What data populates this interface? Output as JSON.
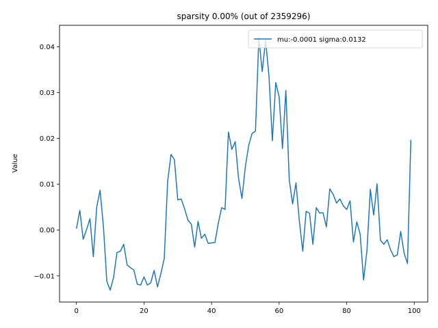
{
  "chart_data": {
    "type": "line",
    "title": "sparsity 0.00% (out of 2359296)",
    "xlabel": "",
    "ylabel": "Value",
    "xlim": [
      -5,
      104
    ],
    "ylim": [
      -0.0157,
      0.0447
    ],
    "xticks": [
      0,
      20,
      40,
      60,
      80,
      100
    ],
    "xtick_labels": [
      "0",
      "20",
      "40",
      "60",
      "80",
      "100"
    ],
    "yticks": [
      -0.01,
      0.0,
      0.01,
      0.02,
      0.03,
      0.04
    ],
    "ytick_labels": [
      "−0.01",
      "0.00",
      "0.01",
      "0.02",
      "0.03",
      "0.04"
    ],
    "grid": false,
    "legend_position": "top-right",
    "series": [
      {
        "name": "mu:-0.0001 sigma:0.0132",
        "color": "#1f77b4",
        "x": [
          0,
          1,
          2,
          3,
          4,
          5,
          6,
          7,
          8,
          9,
          10,
          11,
          12,
          13,
          14,
          15,
          16,
          17,
          18,
          19,
          20,
          21,
          22,
          23,
          24,
          25,
          26,
          27,
          28,
          29,
          30,
          31,
          32,
          33,
          34,
          35,
          36,
          37,
          38,
          39,
          40,
          41,
          42,
          43,
          44,
          45,
          46,
          47,
          48,
          49,
          50,
          51,
          52,
          53,
          54,
          55,
          56,
          57,
          58,
          59,
          60,
          61,
          62,
          63,
          64,
          65,
          66,
          67,
          68,
          69,
          70,
          71,
          72,
          73,
          74,
          75,
          76,
          77,
          78,
          79,
          80,
          81,
          82,
          83,
          84,
          85,
          86,
          87,
          88,
          89,
          90,
          91,
          92,
          93,
          94,
          95,
          96,
          97,
          98,
          99
        ],
        "values": [
          0.0003,
          0.0043,
          -0.002,
          0.0001,
          0.0025,
          -0.0058,
          0.005,
          0.0087,
          0.0007,
          -0.0112,
          -0.0131,
          -0.0103,
          -0.0049,
          -0.0046,
          -0.0031,
          -0.0076,
          -0.0082,
          -0.0087,
          -0.0118,
          -0.012,
          -0.0102,
          -0.012,
          -0.0115,
          -0.0088,
          -0.0124,
          -0.0095,
          -0.0062,
          0.0106,
          0.0165,
          0.0154,
          0.0066,
          0.0068,
          0.0047,
          0.0022,
          0.0013,
          -0.0037,
          0.0019,
          -0.0018,
          -0.0009,
          -0.0029,
          -0.0028,
          -0.0027,
          0.0015,
          0.0049,
          0.0045,
          0.0214,
          0.0176,
          0.0193,
          0.0113,
          0.0069,
          0.0138,
          0.0185,
          0.0211,
          0.0216,
          0.042,
          0.0346,
          0.0415,
          0.0336,
          0.0195,
          0.0322,
          0.0291,
          0.0178,
          0.0305,
          0.011,
          0.0057,
          0.0103,
          0.0019,
          -0.0046,
          0.0041,
          0.0037,
          -0.0031,
          0.0049,
          0.0037,
          0.0038,
          0.0007,
          0.009,
          0.0078,
          0.0059,
          0.0068,
          0.0053,
          0.0045,
          0.0064,
          -0.0026,
          0.0018,
          -0.0009,
          -0.0109,
          -0.0045,
          0.0089,
          0.0033,
          0.0101,
          -0.0022,
          -0.0031,
          -0.0021,
          -0.0043,
          -0.0058,
          -0.0054,
          -0.0003,
          -0.005,
          -0.0073,
          0.0197
        ]
      }
    ]
  }
}
